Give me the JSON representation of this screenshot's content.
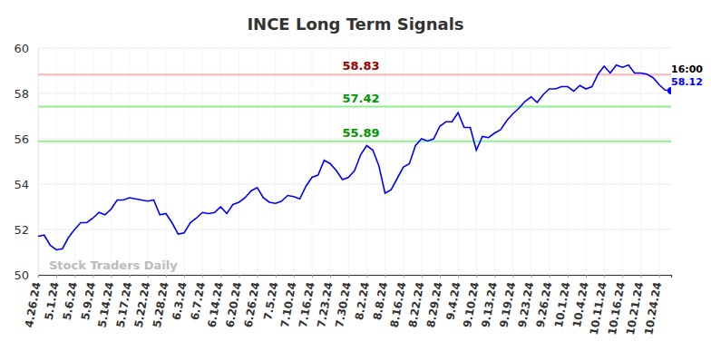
{
  "chart_data": {
    "type": "line",
    "title": "INCE Long Term Signals",
    "categories": [
      "4.26.24",
      null,
      null,
      "5.1.24",
      null,
      null,
      "5.6.24",
      null,
      null,
      "5.9.24",
      null,
      null,
      "5.14.24",
      null,
      null,
      "5.17.24",
      null,
      null,
      "5.22.24",
      null,
      null,
      "5.28.24",
      null,
      null,
      "6.3.24",
      null,
      null,
      "6.7.24",
      null,
      null,
      "6.14.24",
      null,
      null,
      "6.20.24",
      null,
      null,
      "6.26.24",
      null,
      null,
      "7.5.24",
      null,
      null,
      "7.10.24",
      null,
      null,
      "7.16.24",
      null,
      null,
      "7.23.24",
      null,
      null,
      "7.30.24",
      null,
      null,
      "8.2.24",
      null,
      null,
      "8.8.24",
      null,
      null,
      "8.16.24",
      null,
      null,
      "8.22.24",
      null,
      null,
      "8.29.24",
      null,
      null,
      "9.4.24",
      null,
      null,
      "9.10.24",
      null,
      null,
      "9.13.24",
      null,
      null,
      "9.19.24",
      null,
      null,
      "9.23.24",
      null,
      null,
      "9.26.24",
      null,
      null,
      "10.1.24",
      null,
      null,
      "10.4.24",
      null,
      null,
      "10.11.24",
      null,
      null,
      "10.16.24",
      null,
      null,
      "10.21.24",
      null,
      null,
      "10.24.24",
      null,
      null
    ],
    "values": [
      51.7,
      51.75,
      51.3,
      51.1,
      51.15,
      51.65,
      52.0,
      52.3,
      52.3,
      52.5,
      52.75,
      52.65,
      52.9,
      53.3,
      53.3,
      53.4,
      53.35,
      53.3,
      53.25,
      53.3,
      52.65,
      52.7,
      52.3,
      51.8,
      51.85,
      52.3,
      52.5,
      52.75,
      52.7,
      52.75,
      53.0,
      52.7,
      53.1,
      53.2,
      53.4,
      53.7,
      53.85,
      53.4,
      53.2,
      53.15,
      53.25,
      53.5,
      53.45,
      53.35,
      53.9,
      54.3,
      54.4,
      55.05,
      54.9,
      54.6,
      54.2,
      54.3,
      54.6,
      55.3,
      55.7,
      55.5,
      54.8,
      53.6,
      53.75,
      54.25,
      54.75,
      54.9,
      55.7,
      56.0,
      55.9,
      56.0,
      56.55,
      56.75,
      56.75,
      57.15,
      56.5,
      56.5,
      55.5,
      56.1,
      56.05,
      56.25,
      56.4,
      56.8,
      57.1,
      57.35,
      57.65,
      57.85,
      57.6,
      57.95,
      58.2,
      58.2,
      58.3,
      58.3,
      58.1,
      58.35,
      58.2,
      58.3,
      58.85,
      59.2,
      58.9,
      59.25,
      59.15,
      59.25,
      58.9,
      58.9,
      58.85,
      58.7,
      58.4,
      58.15,
      58.12
    ],
    "color": "#0000ff",
    "ylim": [
      50,
      60
    ],
    "yticks": [
      50,
      52,
      54,
      56,
      58,
      60
    ],
    "grid": true,
    "levels": [
      {
        "value": 58.83,
        "color": "#ffb3b3"
      },
      {
        "value": 57.42,
        "color": "#90ee90"
      },
      {
        "value": 55.89,
        "color": "#90ee90"
      }
    ],
    "last_time": "16:00",
    "watermark": "Stock Traders Daily"
  }
}
